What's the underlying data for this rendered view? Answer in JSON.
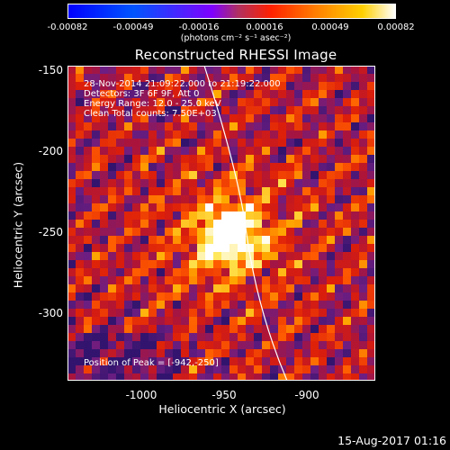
{
  "colorbar": {
    "ticks": [
      "-0.00082",
      "-0.00049",
      "-0.00016",
      "0.00016",
      "0.00049",
      "0.00082"
    ],
    "units": "(photons cm⁻² s⁻¹ asec⁻²)"
  },
  "title": "Reconstructed RHESSI Image",
  "annotations": {
    "time_range": "28-Nov-2014 21:09:22.000 to 21:19:22.000",
    "detectors": "Detectors: 3F 6F 9F, Att 0",
    "energy": "Energy Range: 12.0 - 25.0 keV",
    "method_counts": "Clean    Total counts: 7.50E+03",
    "peak": "Position of Peak = [-942,-250]"
  },
  "axes": {
    "xlabel": "Heliocentric X (arcsec)",
    "ylabel": "Heliocentric Y (arcsec)",
    "xticks": [
      "-1000",
      "-950",
      "-900"
    ],
    "yticks": [
      "-150",
      "-200",
      "-250",
      "-300"
    ]
  },
  "timestamp": "15-Aug-2017 01:16",
  "chart_data": {
    "type": "heatmap",
    "title": "Reconstructed RHESSI Image",
    "xlabel": "Heliocentric X (arcsec)",
    "ylabel": "Heliocentric Y (arcsec)",
    "xlim": [
      -1048,
      -880
    ],
    "ylim": [
      -336,
      -145
    ],
    "xticks": [
      -1000,
      -950,
      -900
    ],
    "yticks": [
      -150,
      -200,
      -250,
      -300
    ],
    "colorbar_range": [
      -0.00082,
      0.00082
    ],
    "colorbar_ticks": [
      -0.00082,
      -0.00049,
      -0.00016,
      0.00016,
      0.00049,
      0.00082
    ],
    "colorbar_units": "(photons cm⁻² s⁻¹ asec⁻²)",
    "peak_position": [
      -942,
      -250
    ],
    "colormap": [
      "#0000ff",
      "#7f00ff",
      "#ff2000",
      "#ff8000",
      "#ffd000",
      "#ffffff"
    ],
    "grid": false
  }
}
